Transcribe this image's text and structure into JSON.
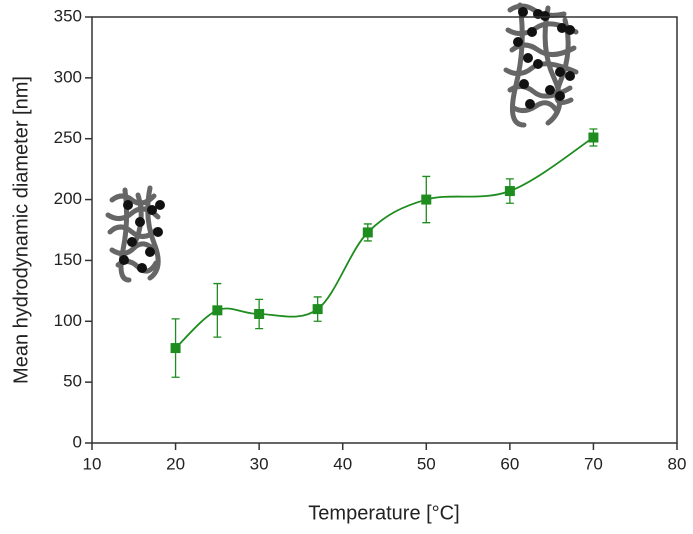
{
  "chart_data": {
    "type": "scatter",
    "x_label": "Temperature [°C]",
    "y_label": "Mean hydrodynamic diameter [nm]",
    "series": [
      {
        "color": "#1e8c1e",
        "x": [
          20,
          25,
          30,
          37,
          43,
          50,
          60,
          70
        ],
        "values": [
          78,
          109,
          106,
          110,
          173,
          200,
          207,
          251
        ],
        "errors": [
          24,
          22,
          12,
          10,
          7,
          19,
          10,
          7
        ]
      }
    ],
    "xlim": [
      10,
      80
    ],
    "xticks": [
      10,
      20,
      30,
      40,
      50,
      60,
      70,
      80
    ],
    "ylim": [
      0,
      350
    ],
    "yticks": [
      0,
      50,
      100,
      150,
      200,
      250,
      300,
      350
    ],
    "fit_curve": true
  }
}
